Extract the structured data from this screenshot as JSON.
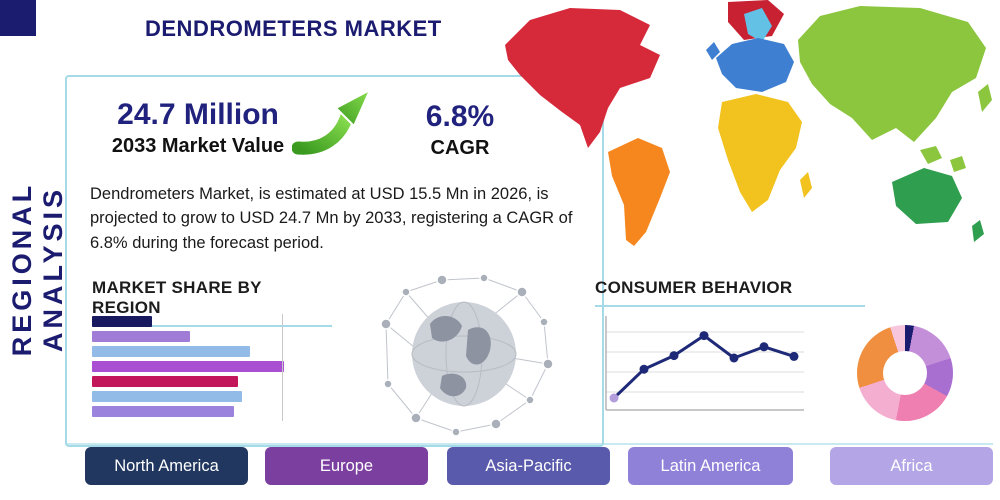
{
  "header": {
    "title": "DENDROMETERS MARKET"
  },
  "sidebar": {
    "vertical_label": "REGIONAL ANALYSIS"
  },
  "stats": {
    "market_value": "24.7 Million",
    "market_value_label": "2033 Market Value",
    "cagr_value": "6.8%",
    "cagr_label": "CAGR"
  },
  "description": "Dendrometers Market, is estimated at USD 15.5 Mn in 2026, is projected to grow to USD 24.7 Mn by 2033, registering a CAGR of 6.8% during the forecast period.",
  "sections": {
    "market_share_title": "MARKET SHARE BY REGION",
    "consumer_behavior_title": "CONSUMER BEHAVIOR"
  },
  "regions": [
    {
      "label": "North America",
      "color": "#21375f"
    },
    {
      "label": "Europe",
      "color": "#7b3fa0"
    },
    {
      "label": "Asia-Pacific",
      "color": "#5a5aad"
    },
    {
      "label": "Latin America",
      "color": "#8f80d8"
    },
    {
      "label": "Africa",
      "color": "#b4a6e6"
    }
  ],
  "colors": {
    "title-navy": "#1b1b70",
    "stat-navy": "#20227e",
    "box-border": "#a5dbe8",
    "accent-green-dark": "#3a9a1f",
    "accent-green-light": "#8adf4f"
  },
  "map_colors": {
    "north_america": "#d6293a",
    "greenland": "#c82132",
    "south_america": "#f5871e",
    "europe": "#3f7fd1",
    "scandinavia": "#62c1e5",
    "uk": "#3f7fd1",
    "africa": "#f2c21f",
    "madagascar": "#f2c21f",
    "asia": "#8cc63f",
    "japan": "#8cc63f",
    "islands": "#8cc63f",
    "australia": "#2f9e4f",
    "new_zealand": "#2f9e4f"
  },
  "chart_data": [
    {
      "id": "market-share-by-region",
      "type": "bar",
      "orientation": "horizontal",
      "title": "MARKET SHARE BY REGION",
      "categories": [
        "",
        "",
        "",
        "",
        "",
        "",
        ""
      ],
      "values": [
        30,
        49,
        79,
        96,
        73,
        75,
        71
      ],
      "max": 100,
      "colors": [
        "#191960",
        "#a07cd6",
        "#93bbe8",
        "#a94fd1",
        "#c2185b",
        "#93bbe8",
        "#9b82dc"
      ],
      "xlabel": "",
      "ylabel": "",
      "grid": false
    },
    {
      "id": "consumer-behavior",
      "type": "line",
      "title": "CONSUMER BEHAVIOR",
      "x": [
        1,
        2,
        3,
        4,
        5,
        6,
        7
      ],
      "values": [
        10,
        46,
        63,
        88,
        60,
        74,
        62
      ],
      "ylim": [
        0,
        100
      ],
      "line_color": "#1e2a78",
      "start_marker_color": "#b39ddb",
      "grid": true,
      "legend": "none"
    },
    {
      "id": "regional-share-donut",
      "type": "pie",
      "subtype": "donut",
      "segments": [
        {
          "value": 3,
          "color": "#1b1b6f"
        },
        {
          "value": 17,
          "color": "#c48fd9"
        },
        {
          "value": 13,
          "color": "#a86fd0"
        },
        {
          "value": 20,
          "color": "#ef7fb0"
        },
        {
          "value": 17,
          "color": "#f4aed0"
        },
        {
          "value": 25,
          "color": "#ef8f3f"
        },
        {
          "value": 5,
          "color": "#f7c6dd"
        }
      ]
    }
  ]
}
